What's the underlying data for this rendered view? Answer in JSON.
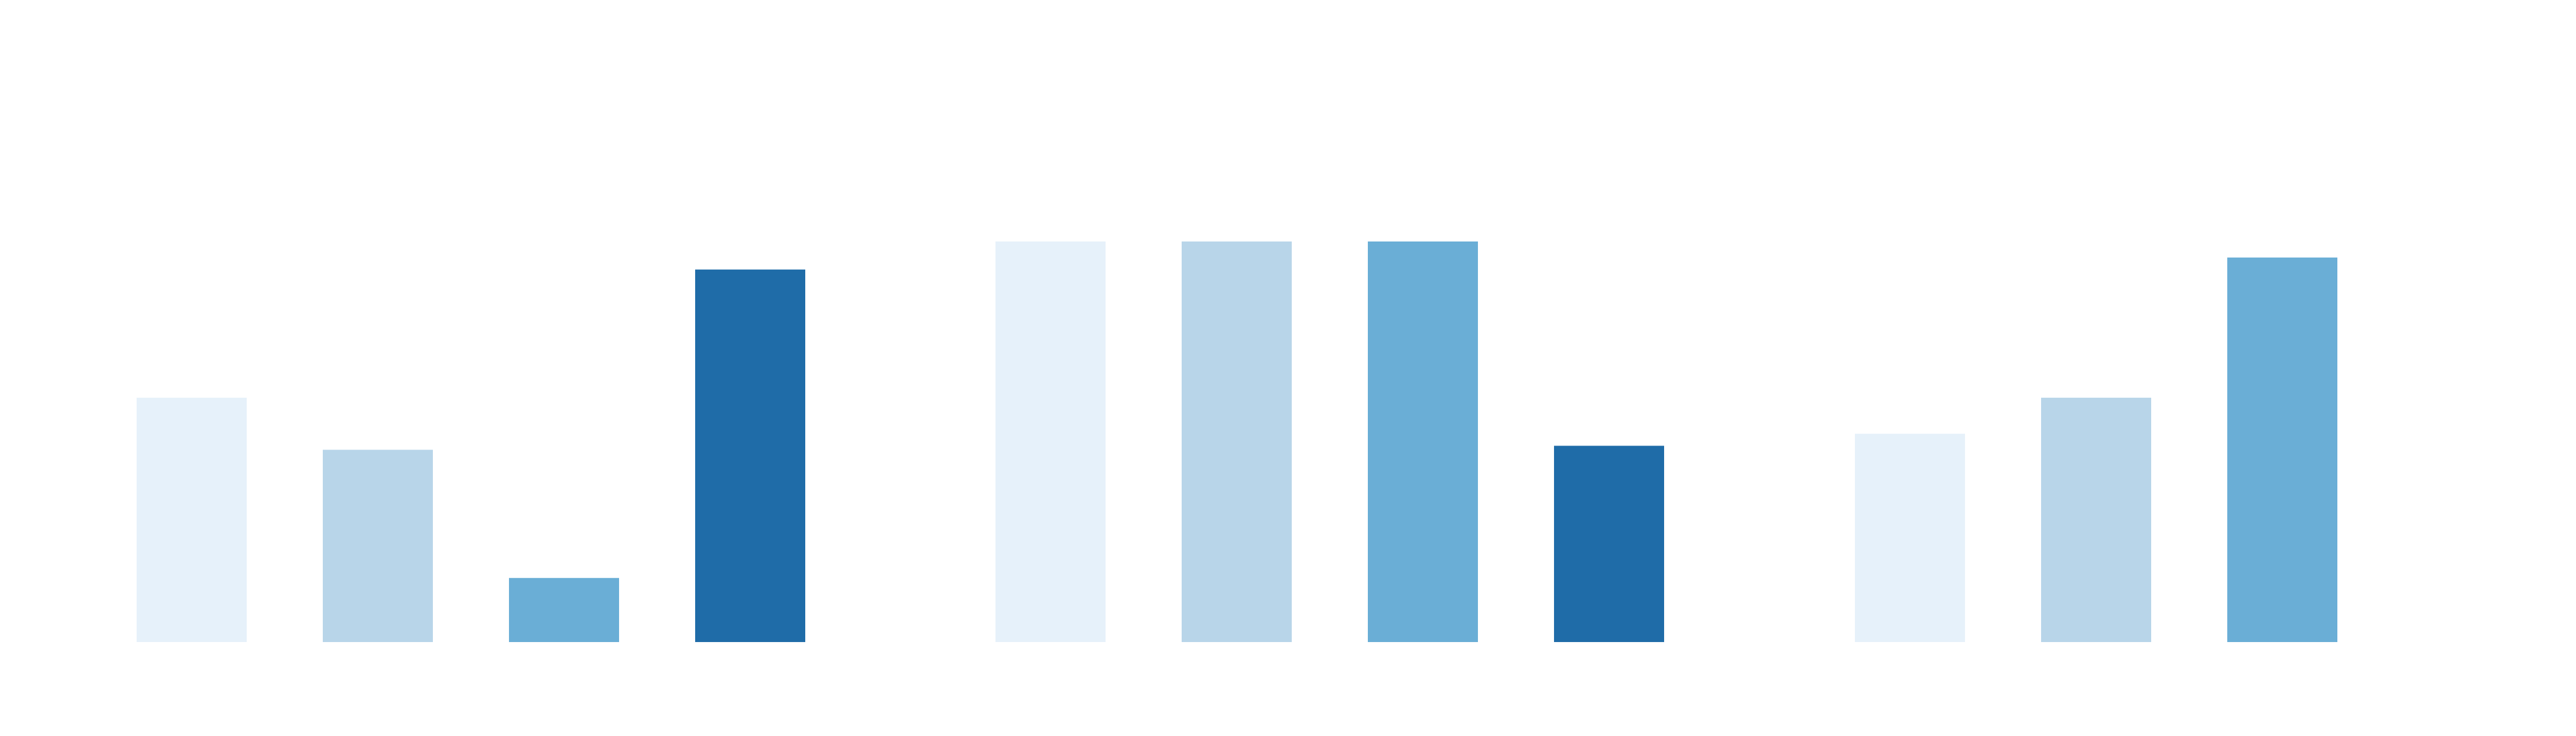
{
  "chart_data": {
    "type": "bar",
    "title": "",
    "xlabel": "",
    "ylabel": "",
    "ylim": [
      0,
      1.0
    ],
    "grid": false,
    "legend": "none",
    "groups": [
      {
        "values": [
          0.61,
          0.48,
          0.16,
          0.93
        ]
      },
      {
        "values": [
          1.0,
          1.0,
          1.0,
          0.49
        ]
      },
      {
        "values": [
          0.52,
          0.61,
          0.96
        ]
      }
    ],
    "colors": [
      "#e6f1fa",
      "#b8d5e9",
      "#6aaed6",
      "#1f6ca8"
    ]
  }
}
